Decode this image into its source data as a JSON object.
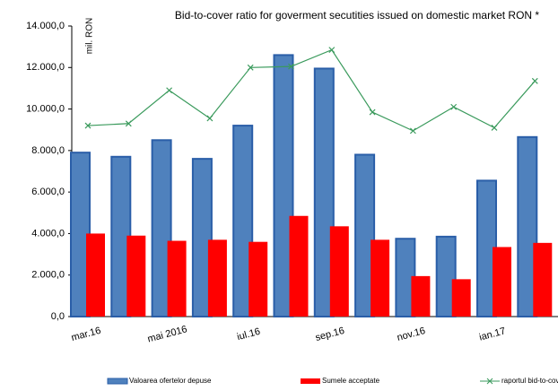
{
  "chart_data": {
    "type": "bar",
    "title": "Bid-to-cover ratio for goverment secutities issued on domestic market RON *",
    "y_axis_label": "mil. RON",
    "categories": [
      "mar.16",
      null,
      "mai 2016",
      null,
      "iul.16",
      null,
      "sep.16",
      null,
      "nov.16",
      null,
      "ian.17",
      null
    ],
    "series": [
      {
        "name": "Valoarea ofertelor depuse",
        "color": "#4f81bd",
        "kind": "bar",
        "values": [
          7900,
          7700,
          8500,
          7600,
          9200,
          12600,
          11950,
          7800,
          3750,
          3850,
          6550,
          8650
        ]
      },
      {
        "name": "Sumele acceptate",
        "color": "#ff0000",
        "kind": "bar",
        "values": [
          4000,
          3900,
          3650,
          3700,
          3600,
          4850,
          4350,
          3700,
          1950,
          1800,
          3350,
          3550
        ]
      },
      {
        "name": "raportul bid-to-cover",
        "color": "#3a9a5c",
        "kind": "line",
        "values": [
          9200,
          9300,
          10900,
          9550,
          12000,
          12050,
          12850,
          9850,
          8950,
          10100,
          9100,
          11350
        ]
      }
    ],
    "ylim": [
      0,
      14000
    ],
    "yticks": [
      {
        "value": 0,
        "label": "0,0"
      },
      {
        "value": 2000,
        "label": "2.000,0"
      },
      {
        "value": 4000,
        "label": "4.000,0"
      },
      {
        "value": 6000,
        "label": "6.000,0"
      },
      {
        "value": 8000,
        "label": "8.000,0"
      },
      {
        "value": 10000,
        "label": "10.000,0"
      },
      {
        "value": 12000,
        "label": "12.000,0"
      },
      {
        "value": 14000,
        "label": "14.000,0"
      }
    ],
    "grid": false
  }
}
